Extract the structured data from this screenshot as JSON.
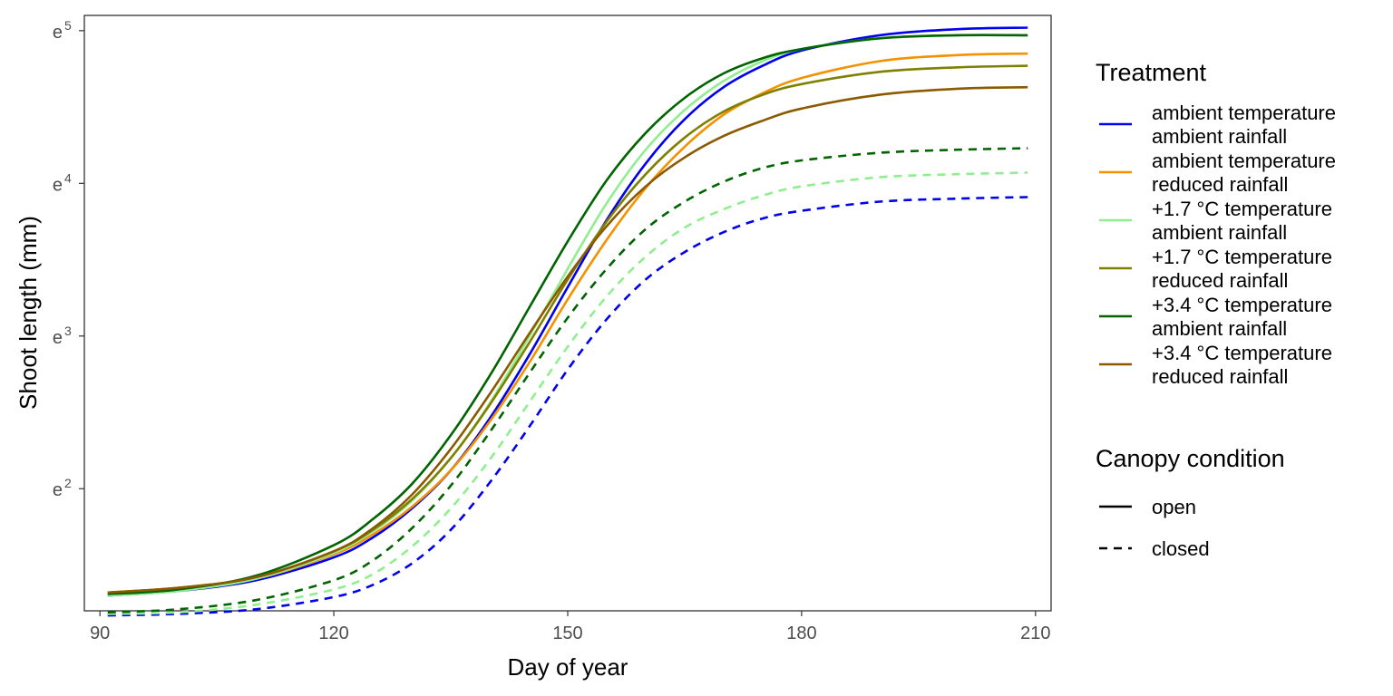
{
  "chart_data": {
    "type": "line",
    "xlabel": "Day of year",
    "ylabel": "Shoot length (mm)",
    "xlim": [
      88,
      212
    ],
    "ylim": [
      1.2,
      5.1
    ],
    "y_scale": "log (natural), ticks shown as powers of e",
    "x_ticks": [
      90,
      120,
      150,
      180,
      210
    ],
    "y_ticks": [
      {
        "value": 2,
        "base": "e",
        "exp": "2"
      },
      {
        "value": 3,
        "base": "e",
        "exp": "3"
      },
      {
        "value": 4,
        "base": "e",
        "exp": "4"
      },
      {
        "value": 5,
        "base": "e",
        "exp": "5"
      }
    ],
    "grid": false,
    "legend_position": "right",
    "legends": {
      "treatment": {
        "title": "Treatment",
        "items": [
          {
            "line1": "ambient temperature",
            "line2": "ambient rainfall",
            "color": "#0000ee"
          },
          {
            "line1": "ambient temperature",
            "line2": "reduced rainfall",
            "color": "#f39100"
          },
          {
            "line1": "+1.7 °C temperature",
            "line2": "ambient rainfall",
            "color": "#90ee90"
          },
          {
            "line1": "+1.7 °C temperature",
            "line2": "reduced rainfall",
            "color": "#808000"
          },
          {
            "line1": "+3.4 °C temperature",
            "line2": "ambient rainfall",
            "color": "#006400"
          },
          {
            "line1": "+3.4 °C temperature",
            "line2": "reduced rainfall",
            "color": "#8b5a00"
          }
        ]
      },
      "canopy": {
        "title": "Canopy condition",
        "items": [
          {
            "label": "open",
            "dash": "solid"
          },
          {
            "label": "closed",
            "dash": "dashed"
          }
        ]
      }
    },
    "series": [
      {
        "treatment": 0,
        "canopy": "open",
        "color": "#0000ee",
        "x": [
          91,
          100,
          110,
          120,
          125,
          130,
          135,
          140,
          145,
          150,
          155,
          160,
          165,
          170,
          175,
          180,
          190,
          200,
          209
        ],
        "y": [
          1.3,
          1.33,
          1.4,
          1.55,
          1.68,
          1.87,
          2.12,
          2.46,
          2.87,
          3.32,
          3.76,
          4.13,
          4.42,
          4.63,
          4.77,
          4.87,
          4.97,
          5.01,
          5.02
        ]
      },
      {
        "treatment": 1,
        "canopy": "open",
        "color": "#f39100",
        "x": [
          91,
          100,
          110,
          120,
          125,
          130,
          135,
          140,
          145,
          150,
          155,
          160,
          165,
          170,
          175,
          180,
          190,
          200,
          209
        ],
        "y": [
          1.32,
          1.35,
          1.41,
          1.57,
          1.7,
          1.88,
          2.12,
          2.44,
          2.82,
          3.24,
          3.63,
          3.97,
          4.24,
          4.45,
          4.59,
          4.69,
          4.8,
          4.84,
          4.85
        ]
      },
      {
        "treatment": 2,
        "canopy": "open",
        "color": "#90ee90",
        "x": [
          91,
          100,
          110,
          120,
          125,
          130,
          135,
          140,
          145,
          150,
          155,
          160,
          165,
          170,
          175,
          180,
          190,
          200,
          209
        ],
        "y": [
          1.3,
          1.33,
          1.41,
          1.58,
          1.72,
          1.92,
          2.2,
          2.56,
          2.99,
          3.44,
          3.87,
          4.22,
          4.48,
          4.67,
          4.8,
          4.88,
          4.95,
          4.97,
          4.97
        ]
      },
      {
        "treatment": 3,
        "canopy": "open",
        "color": "#808000",
        "x": [
          91,
          100,
          110,
          120,
          125,
          130,
          135,
          140,
          145,
          150,
          155,
          160,
          165,
          170,
          175,
          180,
          190,
          200,
          209
        ],
        "y": [
          1.32,
          1.35,
          1.42,
          1.59,
          1.73,
          1.93,
          2.2,
          2.55,
          2.95,
          3.37,
          3.75,
          4.06,
          4.3,
          4.47,
          4.58,
          4.65,
          4.73,
          4.76,
          4.77
        ]
      },
      {
        "treatment": 4,
        "canopy": "open",
        "color": "#006400",
        "x": [
          91,
          100,
          110,
          120,
          125,
          130,
          135,
          140,
          145,
          150,
          155,
          160,
          165,
          170,
          175,
          180,
          190,
          200,
          209
        ],
        "y": [
          1.31,
          1.34,
          1.43,
          1.63,
          1.8,
          2.03,
          2.35,
          2.74,
          3.18,
          3.62,
          4.02,
          4.33,
          4.56,
          4.72,
          4.82,
          4.88,
          4.95,
          4.97,
          4.97
        ]
      },
      {
        "treatment": 5,
        "canopy": "open",
        "color": "#8b5a00",
        "x": [
          91,
          100,
          110,
          120,
          125,
          130,
          135,
          140,
          145,
          150,
          155,
          160,
          165,
          170,
          175,
          180,
          190,
          200,
          209
        ],
        "y": [
          1.32,
          1.35,
          1.42,
          1.59,
          1.74,
          1.96,
          2.26,
          2.62,
          3.01,
          3.39,
          3.72,
          3.98,
          4.17,
          4.31,
          4.41,
          4.49,
          4.58,
          4.62,
          4.63
        ]
      },
      {
        "treatment": 0,
        "canopy": "closed",
        "color": "#0000ee",
        "x": [
          91,
          100,
          110,
          120,
          125,
          130,
          135,
          140,
          145,
          150,
          155,
          160,
          165,
          170,
          175,
          180,
          190,
          200,
          209
        ],
        "y": [
          1.17,
          1.18,
          1.21,
          1.29,
          1.37,
          1.51,
          1.73,
          2.04,
          2.4,
          2.78,
          3.11,
          3.37,
          3.55,
          3.68,
          3.77,
          3.82,
          3.88,
          3.9,
          3.91
        ]
      },
      {
        "treatment": 2,
        "canopy": "closed",
        "color": "#90ee90",
        "x": [
          91,
          100,
          110,
          120,
          125,
          130,
          135,
          140,
          145,
          150,
          155,
          160,
          165,
          170,
          175,
          180,
          190,
          200,
          209
        ],
        "y": [
          1.18,
          1.19,
          1.24,
          1.34,
          1.44,
          1.62,
          1.87,
          2.19,
          2.56,
          2.93,
          3.26,
          3.52,
          3.71,
          3.83,
          3.92,
          3.98,
          4.04,
          4.06,
          4.07
        ]
      },
      {
        "treatment": 4,
        "canopy": "closed",
        "color": "#006400",
        "x": [
          91,
          100,
          110,
          120,
          125,
          130,
          135,
          140,
          145,
          150,
          155,
          160,
          165,
          170,
          175,
          180,
          190,
          200,
          209
        ],
        "y": [
          1.19,
          1.21,
          1.27,
          1.4,
          1.53,
          1.74,
          2.02,
          2.37,
          2.75,
          3.12,
          3.44,
          3.7,
          3.88,
          4.01,
          4.1,
          4.15,
          4.2,
          4.22,
          4.23
        ]
      }
    ]
  }
}
